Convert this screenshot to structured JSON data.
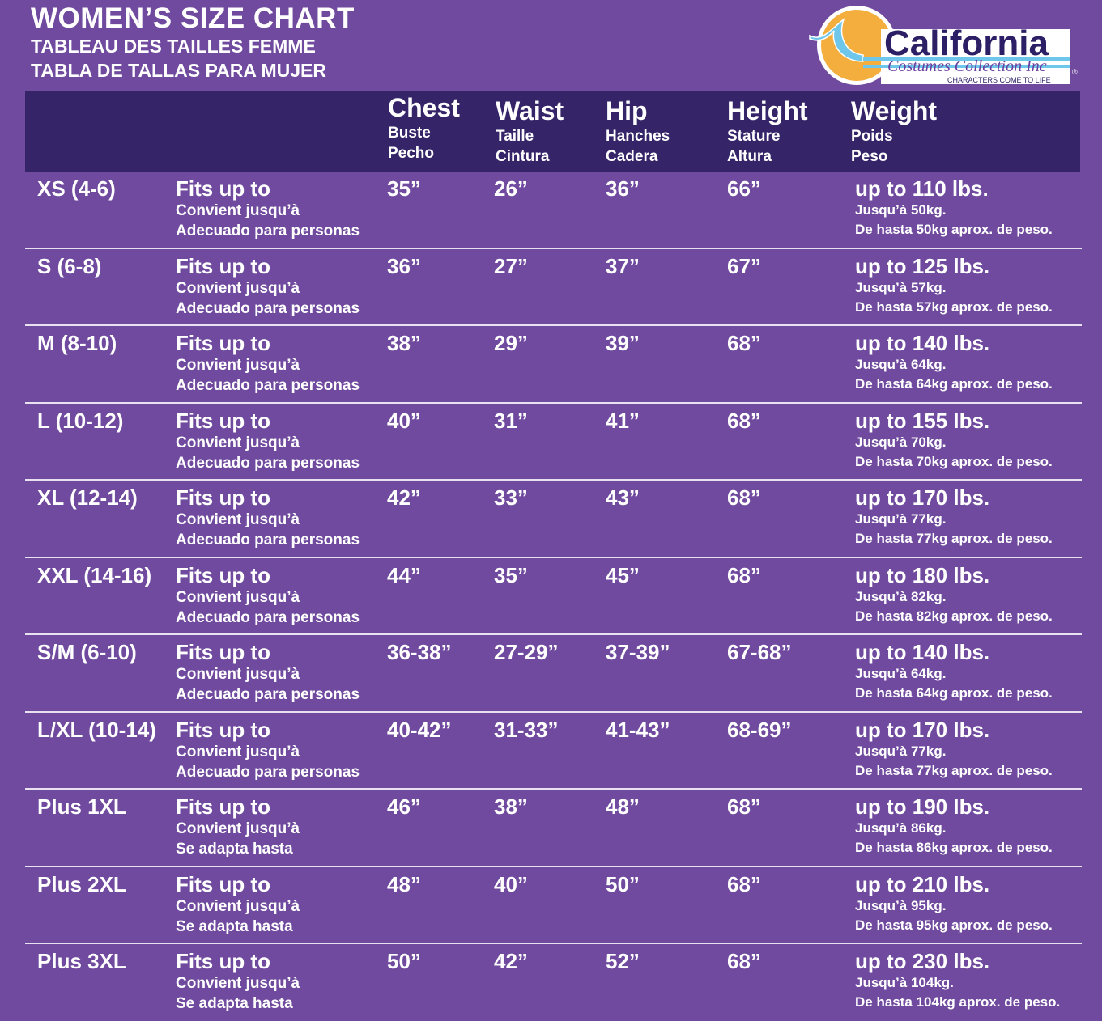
{
  "title": {
    "en": "WOMEN’S SIZE CHART",
    "fr": "TABLEAU DES TAILLES FEMME",
    "es": "TABLA DE TALLAS PARA MUJER"
  },
  "logo": {
    "brand": "California",
    "sub": "Costumes Collection Inc",
    "tagline": "CHARACTERS COME TO LIFE",
    "colors": {
      "sun": "#f4ae3d",
      "wave": "#6ec6ea",
      "text": "#2d1f66"
    }
  },
  "colors": {
    "background": "#6f4a9e",
    "header": "#352468"
  },
  "headers": [
    {
      "main": "Chest",
      "fr": "Buste",
      "es": "Pecho"
    },
    {
      "main": "Waist",
      "fr": "Taille",
      "es": "Cintura"
    },
    {
      "main": "Hip",
      "fr": "Hanches",
      "es": "Cadera"
    },
    {
      "main": "Height",
      "fr": "Stature",
      "es": "Altura"
    },
    {
      "main": "Weight",
      "fr": "Poids",
      "es": "Peso"
    }
  ],
  "rows": [
    {
      "size": "XS (4-6)",
      "fits": "Fits up to",
      "fr": "Convient jusqu’à",
      "es": "Adecuado para personas",
      "chest": "35”",
      "waist": "26”",
      "hip": "36”",
      "height": "66”",
      "weight": "up to 110 lbs.",
      "weight_fr": "Jusqu’à 50kg.",
      "weight_es": "De hasta 50kg aprox. de peso."
    },
    {
      "size": "S (6-8)",
      "fits": "Fits up to",
      "fr": "Convient jusqu’à",
      "es": "Adecuado para personas",
      "chest": "36”",
      "waist": "27”",
      "hip": "37”",
      "height": "67”",
      "weight": "up to 125 lbs.",
      "weight_fr": "Jusqu’à 57kg.",
      "weight_es": "De hasta 57kg aprox. de peso."
    },
    {
      "size": "M (8-10)",
      "fits": "Fits up to",
      "fr": "Convient jusqu’à",
      "es": "Adecuado para personas",
      "chest": "38”",
      "waist": "29”",
      "hip": "39”",
      "height": "68”",
      "weight": "up to 140 lbs.",
      "weight_fr": "Jusqu’à 64kg.",
      "weight_es": "De hasta 64kg aprox. de peso."
    },
    {
      "size": "L (10-12)",
      "fits": "Fits up to",
      "fr": "Convient jusqu’à",
      "es": "Adecuado para personas",
      "chest": "40”",
      "waist": "31”",
      "hip": "41”",
      "height": "68”",
      "weight": "up to 155 lbs.",
      "weight_fr": "Jusqu’à 70kg.",
      "weight_es": "De hasta 70kg aprox. de peso."
    },
    {
      "size": "XL (12-14)",
      "fits": "Fits up to",
      "fr": "Convient jusqu’à",
      "es": "Adecuado para personas",
      "chest": "42”",
      "waist": "33”",
      "hip": "43”",
      "height": "68”",
      "weight": "up to 170 lbs.",
      "weight_fr": "Jusqu’à 77kg.",
      "weight_es": "De hasta 77kg aprox. de peso."
    },
    {
      "size": "XXL (14-16)",
      "fits": "Fits up to",
      "fr": "Convient jusqu’à",
      "es": "Adecuado para personas",
      "chest": "44”",
      "waist": "35”",
      "hip": "45”",
      "height": "68”",
      "weight": "up to 180 lbs.",
      "weight_fr": "Jusqu’à 82kg.",
      "weight_es": "De hasta 82kg aprox. de peso."
    },
    {
      "size": "S/M (6-10)",
      "fits": "Fits up to",
      "fr": "Convient jusqu’à",
      "es": "Adecuado para personas",
      "chest": "36-38”",
      "waist": "27-29”",
      "hip": "37-39”",
      "height": "67-68”",
      "weight": "up to 140 lbs.",
      "weight_fr": "Jusqu’à 64kg.",
      "weight_es": "De hasta 64kg aprox. de peso."
    },
    {
      "size": "L/XL (10-14)",
      "fits": "Fits up to",
      "fr": "Convient jusqu’à",
      "es": "Adecuado para personas",
      "chest": "40-42”",
      "waist": "31-33”",
      "hip": "41-43”",
      "height": "68-69”",
      "weight": "up to 170 lbs.",
      "weight_fr": "Jusqu’à 77kg.",
      "weight_es": "De hasta 77kg aprox. de peso."
    },
    {
      "size": "Plus 1XL",
      "fits": "Fits up to",
      "fr": "Convient jusqu’à",
      "es": "Se adapta hasta",
      "chest": "46”",
      "waist": "38”",
      "hip": "48”",
      "height": "68”",
      "weight": "up to 190 lbs.",
      "weight_fr": "Jusqu’à 86kg.",
      "weight_es": "De hasta 86kg aprox. de peso."
    },
    {
      "size": "Plus 2XL",
      "fits": "Fits up to",
      "fr": "Convient jusqu’à",
      "es": "Se adapta hasta",
      "chest": "48”",
      "waist": "40”",
      "hip": "50”",
      "height": "68”",
      "weight": "up to 210 lbs.",
      "weight_fr": "Jusqu’à 95kg.",
      "weight_es": "De hasta 95kg aprox. de peso."
    },
    {
      "size": "Plus 3XL",
      "fits": "Fits up to",
      "fr": "Convient jusqu’à",
      "es": "Se adapta hasta",
      "chest": "50”",
      "waist": "42”",
      "hip": "52”",
      "height": "68”",
      "weight": "up to 230 lbs.",
      "weight_fr": "Jusqu’à 104kg.",
      "weight_es": "De hasta 104kg aprox. de peso."
    }
  ]
}
